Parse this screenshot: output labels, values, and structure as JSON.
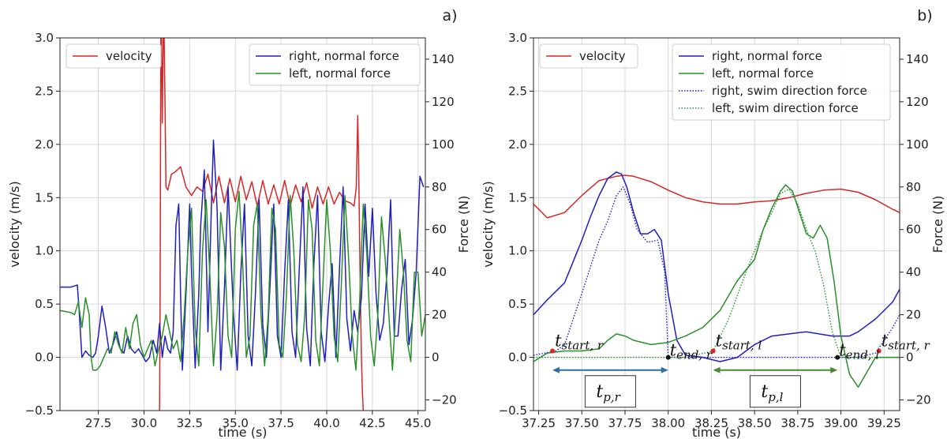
{
  "chart_data": [
    {
      "panel_label": "a)",
      "type": "line",
      "xlabel": "time (s)",
      "ylabel": "velocity (m/s)",
      "ylabel_right": "Force (N)",
      "xlim": [
        25.4,
        45.4
      ],
      "ylim": [
        -0.5,
        3.0
      ],
      "ylim_right": [
        -25,
        150
      ],
      "x_ticks": [
        27.5,
        30.0,
        32.5,
        35.0,
        37.5,
        40.0,
        42.5,
        45.0
      ],
      "x_tick_labels": [
        "27.5",
        "30.0",
        "32.5",
        "35.0",
        "37.5",
        "40.0",
        "42.5",
        "45.0"
      ],
      "y_ticks": [
        -0.5,
        0.0,
        0.5,
        1.0,
        1.5,
        2.0,
        2.5,
        3.0
      ],
      "y_tick_labels": [
        "−0.5",
        "0.0",
        "0.5",
        "1.0",
        "1.5",
        "2.0",
        "2.5",
        "3.0"
      ],
      "y_right_ticks": [
        -20,
        0,
        20,
        40,
        60,
        80,
        100,
        120,
        140
      ],
      "y_right_tick_labels": [
        "−20",
        "0",
        "20",
        "40",
        "60",
        "80",
        "100",
        "120",
        "140"
      ],
      "grid": true,
      "legend_left": [
        "velocity"
      ],
      "legend_right": [
        "right, normal force",
        "left, normal force"
      ],
      "series": [
        {
          "name": "velocity",
          "axis": "left",
          "color": "#d62728",
          "dash": "solid",
          "x": [
            30.85,
            30.88,
            30.92,
            30.96,
            31.0,
            31.05,
            31.1,
            31.15,
            31.2,
            31.3,
            31.5,
            31.7,
            32.0,
            32.3,
            32.6,
            32.9,
            33.2,
            33.5,
            33.8,
            34.1,
            34.4,
            34.7,
            35.0,
            35.3,
            35.6,
            35.9,
            36.2,
            36.5,
            36.8,
            37.1,
            37.4,
            37.7,
            38.0,
            38.3,
            38.6,
            38.9,
            39.2,
            39.5,
            39.8,
            40.1,
            40.4,
            40.7,
            41.0,
            41.3,
            41.5,
            41.62,
            41.7,
            41.75,
            41.8,
            41.85,
            41.9,
            41.95,
            42.0
          ],
          "y": [
            -0.5,
            0.6,
            3.0,
            3.0,
            2.2,
            3.0,
            3.0,
            2.4,
            1.6,
            1.57,
            1.72,
            1.74,
            1.79,
            1.6,
            1.52,
            1.6,
            1.56,
            1.72,
            1.45,
            1.7,
            1.45,
            1.68,
            1.46,
            1.7,
            1.48,
            1.65,
            1.42,
            1.66,
            1.44,
            1.62,
            1.44,
            1.66,
            1.42,
            1.62,
            1.46,
            1.64,
            1.4,
            1.6,
            1.44,
            1.6,
            1.44,
            1.55,
            1.47,
            1.45,
            1.42,
            1.6,
            2.27,
            1.8,
            1.1,
            0.5,
            0.0,
            -0.3,
            -0.5
          ]
        },
        {
          "name": "right, normal force",
          "axis": "right",
          "color": "#1f1fbf",
          "dash": "solid",
          "x": [
            25.4,
            26.0,
            26.35,
            26.45,
            26.6,
            26.8,
            27.0,
            27.2,
            27.35,
            27.5,
            27.7,
            27.9,
            28.1,
            28.3,
            28.5,
            28.7,
            28.9,
            29.1,
            29.3,
            29.5,
            29.7,
            29.9,
            30.1,
            30.3,
            30.5,
            30.7,
            30.85,
            31.0,
            31.15,
            31.3,
            31.45,
            31.6,
            31.75,
            31.9,
            32.0,
            32.1,
            32.3,
            32.5,
            32.6,
            32.8,
            33.0,
            33.1,
            33.3,
            33.5,
            33.7,
            33.8,
            34.0,
            34.2,
            34.4,
            34.6,
            34.9,
            35.1,
            35.3,
            35.5,
            35.7,
            35.9,
            36.1,
            36.3,
            36.5,
            36.7,
            36.9,
            37.1,
            37.3,
            37.5,
            37.7,
            37.9,
            38.1,
            38.3,
            38.5,
            38.7,
            38.9,
            39.1,
            39.3,
            39.5,
            39.7,
            39.9,
            40.1,
            40.3,
            40.5,
            40.7,
            40.9,
            41.1,
            41.3,
            41.5,
            41.7,
            41.9,
            42.1,
            42.3,
            42.5,
            42.7,
            42.9,
            43.1,
            43.3,
            43.5,
            43.7,
            43.9,
            44.1,
            44.3,
            44.5,
            44.7,
            44.9,
            45.1,
            45.3
          ],
          "y": [
            33,
            33,
            34,
            22,
            0,
            3,
            1,
            0,
            2,
            10,
            24,
            14,
            2,
            6,
            12,
            4,
            2,
            10,
            4,
            2,
            4,
            1,
            -2,
            0,
            8,
            2,
            16,
            0,
            10,
            4,
            2,
            12,
            62,
            72,
            30,
            -6,
            30,
            72,
            40,
            -5,
            30,
            62,
            88,
            12,
            74,
            102,
            70,
            -6,
            32,
            80,
            20,
            -6,
            40,
            72,
            10,
            -4,
            30,
            74,
            15,
            0,
            34,
            72,
            10,
            0,
            40,
            74,
            12,
            0,
            42,
            80,
            14,
            -4,
            44,
            76,
            12,
            -2,
            24,
            44,
            0,
            42,
            80,
            18,
            3,
            22,
            12,
            28,
            72,
            38,
            70,
            30,
            8,
            16,
            40,
            74,
            10,
            10,
            32,
            46,
            6,
            18,
            40,
            85,
            80
          ]
        },
        {
          "name": "left, normal force",
          "axis": "right",
          "color": "#2a8f2a",
          "dash": "solid",
          "x": [
            25.4,
            26.0,
            26.2,
            26.4,
            26.6,
            26.8,
            27.0,
            27.1,
            27.2,
            27.4,
            27.6,
            27.8,
            28.0,
            28.2,
            28.4,
            28.6,
            28.8,
            29.0,
            29.2,
            29.4,
            29.6,
            29.8,
            30.0,
            30.2,
            30.4,
            30.6,
            30.8,
            31.0,
            31.2,
            31.4,
            31.6,
            31.8,
            32.0,
            32.2,
            32.4,
            32.6,
            32.8,
            33.0,
            33.2,
            33.4,
            33.6,
            33.8,
            34.0,
            34.2,
            34.4,
            34.6,
            34.8,
            35.0,
            35.2,
            35.4,
            35.6,
            35.8,
            36.0,
            36.2,
            36.4,
            36.6,
            36.8,
            37.0,
            37.2,
            37.4,
            37.6,
            37.8,
            38.0,
            38.2,
            38.4,
            38.6,
            38.8,
            39.0,
            39.2,
            39.4,
            39.6,
            39.8,
            40.0,
            40.2,
            40.4,
            40.6,
            40.8,
            41.0,
            41.2,
            41.4,
            41.6,
            41.8,
            42.0,
            42.2,
            42.4,
            42.6,
            42.8,
            43.0,
            43.2,
            43.4,
            43.6,
            43.8,
            44.0,
            44.2,
            44.4,
            44.6,
            44.8,
            45.0,
            45.2,
            45.4
          ],
          "y": [
            22,
            21,
            20,
            26,
            14,
            28,
            20,
            0,
            -6,
            -6,
            -4,
            0,
            4,
            2,
            12,
            6,
            2,
            14,
            4,
            16,
            20,
            6,
            0,
            4,
            8,
            -4,
            4,
            10,
            20,
            12,
            4,
            8,
            -2,
            20,
            50,
            70,
            14,
            -4,
            50,
            74,
            40,
            -4,
            20,
            68,
            52,
            10,
            0,
            60,
            78,
            44,
            0,
            10,
            62,
            72,
            20,
            -4,
            20,
            70,
            60,
            6,
            0,
            30,
            76,
            50,
            6,
            -2,
            20,
            74,
            60,
            8,
            -4,
            36,
            74,
            50,
            10,
            -2,
            34,
            76,
            46,
            10,
            -6,
            26,
            72,
            48,
            10,
            -4,
            20,
            66,
            46,
            20,
            -6,
            26,
            60,
            40,
            8,
            -2,
            40,
            40,
            10,
            20
          ]
        }
      ]
    },
    {
      "panel_label": "b)",
      "type": "line",
      "xlabel": "time (s)",
      "ylabel": "velocity (m/s)",
      "ylabel_right": "Force (N)",
      "xlim": [
        37.22,
        39.34
      ],
      "ylim": [
        -0.5,
        3.0
      ],
      "ylim_right": [
        -25,
        150
      ],
      "x_ticks": [
        37.25,
        37.5,
        37.75,
        38.0,
        38.25,
        38.5,
        38.75,
        39.0,
        39.25
      ],
      "x_tick_labels": [
        "37.25",
        "37.50",
        "37.75",
        "38.00",
        "38.25",
        "38.50",
        "38.75",
        "39.00",
        "39.25"
      ],
      "y_ticks": [
        -0.5,
        0.0,
        0.5,
        1.0,
        1.5,
        2.0,
        2.5,
        3.0
      ],
      "y_tick_labels": [
        "−0.5",
        "0.0",
        "0.5",
        "1.0",
        "1.5",
        "2.0",
        "2.5",
        "3.0"
      ],
      "y_right_ticks": [
        -20,
        0,
        20,
        40,
        60,
        80,
        100,
        120,
        140
      ],
      "y_right_tick_labels": [
        "−20",
        "0",
        "20",
        "40",
        "60",
        "80",
        "100",
        "120",
        "140"
      ],
      "grid": true,
      "legend_left": [
        "velocity"
      ],
      "legend_right": [
        "right, normal force",
        "left, normal force",
        "right, swim direction force",
        "left, swim direction force"
      ],
      "series": [
        {
          "name": "velocity",
          "axis": "left",
          "color": "#d62728",
          "dash": "solid",
          "x": [
            37.22,
            37.3,
            37.4,
            37.5,
            37.6,
            37.7,
            37.75,
            37.8,
            37.9,
            38.0,
            38.1,
            38.2,
            38.3,
            38.4,
            38.5,
            38.6,
            38.7,
            38.8,
            38.9,
            39.0,
            39.1,
            39.2,
            39.3,
            39.34
          ],
          "y": [
            1.44,
            1.31,
            1.36,
            1.52,
            1.66,
            1.7,
            1.71,
            1.7,
            1.65,
            1.57,
            1.5,
            1.46,
            1.44,
            1.44,
            1.46,
            1.47,
            1.5,
            1.54,
            1.57,
            1.58,
            1.55,
            1.48,
            1.39,
            1.36
          ]
        },
        {
          "name": "right, normal force",
          "axis": "right",
          "color": "#1f1fbf",
          "dash": "solid",
          "x": [
            37.22,
            37.3,
            37.4,
            37.5,
            37.55,
            37.6,
            37.65,
            37.7,
            37.73,
            37.76,
            37.8,
            37.84,
            37.88,
            37.92,
            37.96,
            38.0,
            38.05,
            38.1,
            38.2,
            38.3,
            38.4,
            38.5,
            38.6,
            38.8,
            38.95,
            39.05,
            39.1,
            39.2,
            39.3,
            39.34
          ],
          "y": [
            20,
            27,
            35,
            55,
            66,
            76,
            84,
            87,
            86,
            80,
            68,
            58,
            58,
            60,
            55,
            30,
            8,
            1,
            0,
            -2,
            0,
            6,
            10,
            12,
            10,
            10,
            12,
            18,
            26,
            32
          ]
        },
        {
          "name": "left, normal force",
          "axis": "right",
          "color": "#2a8f2a",
          "dash": "solid",
          "x": [
            37.22,
            37.3,
            37.4,
            37.5,
            37.6,
            37.65,
            37.7,
            37.75,
            37.8,
            37.9,
            38.0,
            38.1,
            38.2,
            38.3,
            38.4,
            38.5,
            38.55,
            38.6,
            38.65,
            38.68,
            38.72,
            38.76,
            38.8,
            38.84,
            38.88,
            38.92,
            38.96,
            39.0,
            39.05,
            39.1,
            39.2,
            39.34
          ],
          "y": [
            -2,
            2,
            3,
            3,
            4,
            8,
            11,
            10,
            8,
            6,
            7,
            10,
            14,
            22,
            36,
            46,
            60,
            70,
            78,
            81,
            78,
            68,
            58,
            56,
            62,
            56,
            36,
            10,
            -8,
            -14,
            0,
            0
          ]
        },
        {
          "name": "right, swim direction force",
          "axis": "right",
          "color": "#1f1fbf",
          "dash": "dotted",
          "x": [
            37.22,
            37.35,
            37.4,
            37.5,
            37.6,
            37.65,
            37.7,
            37.74,
            37.78,
            37.82,
            37.88,
            37.94,
            37.98,
            38.0,
            38.1,
            38.3,
            38.6,
            38.9,
            39.1,
            39.2,
            39.3,
            39.34
          ],
          "y": [
            1,
            3,
            6,
            30,
            55,
            64,
            76,
            80,
            72,
            60,
            54,
            55,
            40,
            0,
            0,
            0,
            0,
            0,
            0,
            2,
            14,
            20
          ]
        },
        {
          "name": "left, swim direction force",
          "axis": "right",
          "color": "#2a8f2a",
          "dash": "dotted",
          "x": [
            37.22,
            37.3,
            37.5,
            37.7,
            37.9,
            38.1,
            38.26,
            38.35,
            38.45,
            38.55,
            38.6,
            38.65,
            38.7,
            38.75,
            38.8,
            38.85,
            38.9,
            38.95,
            39.0,
            39.05,
            39.2,
            39.34
          ],
          "y": [
            0,
            0,
            0,
            0,
            0,
            0,
            3,
            18,
            40,
            60,
            68,
            77,
            79,
            72,
            60,
            50,
            34,
            12,
            0,
            0,
            0,
            0
          ]
        }
      ],
      "markers": [
        {
          "label_main": "t",
          "label_sub": "start, r",
          "x": 37.33,
          "y": 3,
          "color": "#e8231e"
        },
        {
          "label_main": "t",
          "label_sub": "start, l",
          "x": 38.26,
          "y": 3,
          "color": "#e8231e"
        },
        {
          "label_main": "t",
          "label_sub": "start, r",
          "x": 39.22,
          "y": 3,
          "color": "#e8231e"
        },
        {
          "label_main": "t",
          "label_sub": "end, r",
          "x": 38.0,
          "y": 0,
          "color": "#111111"
        },
        {
          "label_main": "t",
          "label_sub": "end, l",
          "x": 38.98,
          "y": 0,
          "color": "#111111"
        }
      ],
      "spans": [
        {
          "label_main": "t",
          "label_sub": "p,r",
          "x0": 37.33,
          "x1": 38.0,
          "color": "#2e6fa5"
        },
        {
          "label_main": "t",
          "label_sub": "p,l",
          "x0": 38.26,
          "x1": 38.98,
          "color": "#4a8a35"
        }
      ]
    }
  ]
}
